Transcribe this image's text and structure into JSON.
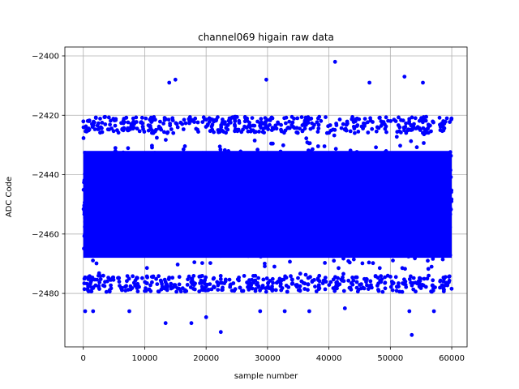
{
  "chart_data": {
    "type": "scatter",
    "title": "channel069 higain raw data",
    "xlabel": "sample number",
    "ylabel": "ADC Code",
    "xlim": [
      -3000,
      62500
    ],
    "ylim": [
      -2498,
      -2397
    ],
    "xticks": [
      0,
      10000,
      20000,
      30000,
      40000,
      50000,
      60000
    ],
    "xtick_labels": [
      "0",
      "10000",
      "20000",
      "30000",
      "40000",
      "50000",
      "60000"
    ],
    "yticks": [
      -2480,
      -2460,
      -2440,
      -2420,
      -2400
    ],
    "ytick_labels": [
      "−2480",
      "−2460",
      "−2440",
      "−2420",
      "−2400"
    ],
    "grid": true,
    "marker_color": "#0000ff",
    "series": [
      {
        "x_range": [
          0,
          59999
        ],
        "dense_band": [
          -2474,
          -2426
        ],
        "core_band": [
          -2468,
          -2432
        ],
        "outliers": [
          {
            "x": 41000,
            "y": -2402
          },
          {
            "x": 29800,
            "y": -2408
          },
          {
            "x": 52300,
            "y": -2407
          },
          {
            "x": 46600,
            "y": -2409
          },
          {
            "x": 14000,
            "y": -2409
          },
          {
            "x": 15000,
            "y": -2408
          },
          {
            "x": 55300,
            "y": -2409
          },
          {
            "x": 300,
            "y": -2486
          },
          {
            "x": 1600,
            "y": -2486
          },
          {
            "x": 7500,
            "y": -2486
          },
          {
            "x": 13400,
            "y": -2490
          },
          {
            "x": 17600,
            "y": -2490
          },
          {
            "x": 22400,
            "y": -2493
          },
          {
            "x": 28800,
            "y": -2486
          },
          {
            "x": 32800,
            "y": -2486
          },
          {
            "x": 36800,
            "y": -2486
          },
          {
            "x": 42600,
            "y": -2485
          },
          {
            "x": 53500,
            "y": -2494
          },
          {
            "x": 53100,
            "y": -2486
          },
          {
            "x": 57100,
            "y": -2486
          },
          {
            "x": 20000,
            "y": -2488
          }
        ]
      }
    ]
  }
}
